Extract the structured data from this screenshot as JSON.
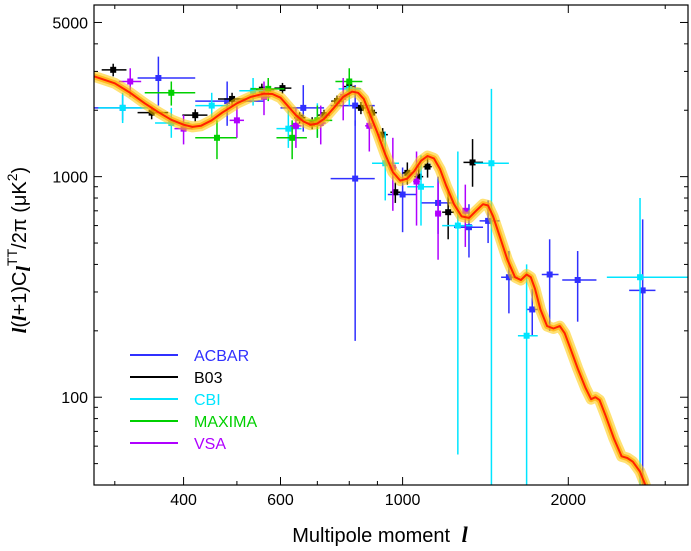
{
  "chart_data": {
    "type": "scatter",
    "xscale": "log",
    "yscale": "log",
    "xlim": [
      275,
      3300
    ],
    "ylim": [
      40,
      6000
    ],
    "xlabel": "Multipole moment",
    "xlabel_symbol": "l",
    "ylabel_parts": [
      "l",
      "(",
      "l",
      "+1)C",
      "l",
      "TT",
      "/2π (μK",
      "2",
      ")"
    ],
    "xticks": [
      400,
      600,
      1000,
      2000
    ],
    "xtick_labels": [
      "400",
      "600",
      "1000",
      "2000"
    ],
    "yticks": [
      100,
      1000,
      5000
    ],
    "ytick_labels": [
      "100",
      "1000",
      "5000"
    ],
    "legend_position": "lower-left",
    "model_curve": {
      "name": "best-fit model",
      "color": "#ff2200",
      "band_color": "#ffc800",
      "points": [
        [
          275,
          2850
        ],
        [
          300,
          2650
        ],
        [
          320,
          2400
        ],
        [
          340,
          2150
        ],
        [
          360,
          1960
        ],
        [
          380,
          1810
        ],
        [
          400,
          1720
        ],
        [
          415,
          1680
        ],
        [
          430,
          1700
        ],
        [
          450,
          1800
        ],
        [
          470,
          1950
        ],
        [
          500,
          2150
        ],
        [
          530,
          2300
        ],
        [
          560,
          2380
        ],
        [
          580,
          2370
        ],
        [
          600,
          2280
        ],
        [
          620,
          2080
        ],
        [
          640,
          1900
        ],
        [
          660,
          1780
        ],
        [
          680,
          1720
        ],
        [
          700,
          1740
        ],
        [
          720,
          1830
        ],
        [
          750,
          2050
        ],
        [
          780,
          2300
        ],
        [
          810,
          2430
        ],
        [
          830,
          2400
        ],
        [
          850,
          2250
        ],
        [
          870,
          1950
        ],
        [
          900,
          1580
        ],
        [
          930,
          1260
        ],
        [
          960,
          1050
        ],
        [
          990,
          960
        ],
        [
          1020,
          980
        ],
        [
          1050,
          1060
        ],
        [
          1080,
          1180
        ],
        [
          1110,
          1240
        ],
        [
          1140,
          1210
        ],
        [
          1170,
          1080
        ],
        [
          1200,
          910
        ],
        [
          1240,
          750
        ],
        [
          1280,
          660
        ],
        [
          1320,
          650
        ],
        [
          1360,
          700
        ],
        [
          1400,
          750
        ],
        [
          1430,
          740
        ],
        [
          1460,
          660
        ],
        [
          1500,
          540
        ],
        [
          1550,
          420
        ],
        [
          1600,
          350
        ],
        [
          1640,
          340
        ],
        [
          1680,
          360
        ],
        [
          1710,
          350
        ],
        [
          1740,
          310
        ],
        [
          1780,
          250
        ],
        [
          1830,
          210
        ],
        [
          1880,
          205
        ],
        [
          1930,
          210
        ],
        [
          1970,
          195
        ],
        [
          2020,
          165
        ],
        [
          2080,
          135
        ],
        [
          2150,
          110
        ],
        [
          2200,
          98
        ],
        [
          2240,
          100
        ],
        [
          2280,
          97
        ],
        [
          2340,
          82
        ],
        [
          2420,
          65
        ],
        [
          2500,
          54
        ],
        [
          2560,
          53
        ],
        [
          2620,
          51
        ],
        [
          2700,
          46
        ],
        [
          2760,
          40
        ]
      ]
    },
    "series": [
      {
        "name": "ACBAR",
        "color": "#3030ff",
        "points": [
          {
            "x": 310,
            "y": 2050,
            "xlo": 275,
            "xhi": 340,
            "ylo": 1800,
            "yhi": 2350
          },
          {
            "x": 360,
            "y": 2800,
            "xlo": 330,
            "xhi": 420,
            "ylo": 2100,
            "yhi": 3500
          },
          {
            "x": 480,
            "y": 2200,
            "xlo": 420,
            "xhi": 560,
            "ylo": 1700,
            "yhi": 2700
          },
          {
            "x": 660,
            "y": 2050,
            "xlo": 600,
            "xhi": 720,
            "ylo": 1600,
            "yhi": 2600
          },
          {
            "x": 820,
            "y": 2100,
            "xlo": 740,
            "xhi": 890,
            "ylo": 1700,
            "yhi": 2600
          },
          {
            "x": 820,
            "y": 980,
            "xlo": 740,
            "xhi": 890,
            "ylo": 180,
            "yhi": 1800
          },
          {
            "x": 1000,
            "y": 830,
            "xlo": 940,
            "xhi": 1060,
            "ylo": 560,
            "yhi": 1100
          },
          {
            "x": 1160,
            "y": 760,
            "xlo": 1080,
            "xhi": 1240,
            "ylo": 550,
            "yhi": 1000
          },
          {
            "x": 1320,
            "y": 590,
            "xlo": 1240,
            "xhi": 1400,
            "ylo": 430,
            "yhi": 750
          },
          {
            "x": 1430,
            "y": 630,
            "xlo": 1380,
            "xhi": 1500,
            "ylo": 500,
            "yhi": 780
          },
          {
            "x": 1560,
            "y": 350,
            "xlo": 1510,
            "xhi": 1620,
            "ylo": 240,
            "yhi": 460
          },
          {
            "x": 1720,
            "y": 250,
            "xlo": 1680,
            "xhi": 1760,
            "ylo": 190,
            "yhi": 310
          },
          {
            "x": 1850,
            "y": 360,
            "xlo": 1790,
            "xhi": 1920,
            "ylo": 200,
            "yhi": 520
          },
          {
            "x": 2080,
            "y": 340,
            "xlo": 1950,
            "xhi": 2250,
            "ylo": 220,
            "yhi": 460
          },
          {
            "x": 2730,
            "y": 305,
            "xlo": 2580,
            "xhi": 2880,
            "ylo": 40,
            "yhi": 640
          }
        ]
      },
      {
        "name": "B03",
        "color": "#000000",
        "points": [
          {
            "x": 298,
            "y": 3050,
            "xlo": 284,
            "xhi": 315,
            "ylo": 2850,
            "yhi": 3250
          },
          {
            "x": 350,
            "y": 1950,
            "xlo": 330,
            "xhi": 375,
            "ylo": 1820,
            "yhi": 2080
          },
          {
            "x": 420,
            "y": 1900,
            "xlo": 398,
            "xhi": 442,
            "ylo": 1780,
            "yhi": 2020
          },
          {
            "x": 490,
            "y": 2250,
            "xlo": 462,
            "xhi": 520,
            "ylo": 2100,
            "yhi": 2400
          },
          {
            "x": 555,
            "y": 2480,
            "xlo": 528,
            "xhi": 585,
            "ylo": 2320,
            "yhi": 2640
          },
          {
            "x": 605,
            "y": 2520,
            "xlo": 585,
            "xhi": 628,
            "ylo": 2380,
            "yhi": 2660
          },
          {
            "x": 650,
            "y": 1850,
            "xlo": 635,
            "xhi": 666,
            "ylo": 1740,
            "yhi": 1960
          },
          {
            "x": 685,
            "y": 1750,
            "xlo": 668,
            "xhi": 702,
            "ylo": 1640,
            "yhi": 1860
          },
          {
            "x": 720,
            "y": 1900,
            "xlo": 702,
            "xhi": 738,
            "ylo": 1790,
            "yhi": 2010
          },
          {
            "x": 760,
            "y": 2200,
            "xlo": 742,
            "xhi": 778,
            "ylo": 2080,
            "yhi": 2330
          },
          {
            "x": 800,
            "y": 2560,
            "xlo": 782,
            "xhi": 818,
            "ylo": 2420,
            "yhi": 2700
          },
          {
            "x": 840,
            "y": 2050,
            "xlo": 822,
            "xhi": 858,
            "ylo": 1920,
            "yhi": 2180
          },
          {
            "x": 880,
            "y": 1950,
            "xlo": 862,
            "xhi": 898,
            "ylo": 1820,
            "yhi": 2080
          },
          {
            "x": 920,
            "y": 1550,
            "xlo": 900,
            "xhi": 940,
            "ylo": 1440,
            "yhi": 1660
          },
          {
            "x": 970,
            "y": 850,
            "xlo": 950,
            "xhi": 990,
            "ylo": 760,
            "yhi": 940
          },
          {
            "x": 1020,
            "y": 1040,
            "xlo": 1000,
            "xhi": 1040,
            "ylo": 920,
            "yhi": 1160
          },
          {
            "x": 1070,
            "y": 1000,
            "xlo": 1050,
            "xhi": 1090,
            "ylo": 880,
            "yhi": 1120
          },
          {
            "x": 1110,
            "y": 1110,
            "xlo": 1090,
            "xhi": 1130,
            "ylo": 990,
            "yhi": 1240
          },
          {
            "x": 1210,
            "y": 690,
            "xlo": 1180,
            "xhi": 1240,
            "ylo": 520,
            "yhi": 880
          },
          {
            "x": 1340,
            "y": 1160,
            "xlo": 1290,
            "xhi": 1400,
            "ylo": 900,
            "yhi": 1480
          }
        ]
      },
      {
        "name": "CBI",
        "color": "#00e5ff",
        "points": [
          {
            "x": 310,
            "y": 2050,
            "xlo": 280,
            "xhi": 345,
            "ylo": 1750,
            "yhi": 2400
          },
          {
            "x": 380,
            "y": 1750,
            "xlo": 355,
            "xhi": 410,
            "ylo": 1500,
            "yhi": 2050
          },
          {
            "x": 450,
            "y": 2100,
            "xlo": 420,
            "xhi": 485,
            "ylo": 1850,
            "yhi": 2400
          },
          {
            "x": 535,
            "y": 2450,
            "xlo": 505,
            "xhi": 570,
            "ylo": 2100,
            "yhi": 2800
          },
          {
            "x": 620,
            "y": 1650,
            "xlo": 590,
            "xhi": 655,
            "ylo": 1350,
            "yhi": 2000
          },
          {
            "x": 700,
            "y": 1800,
            "xlo": 665,
            "xhi": 735,
            "ylo": 1500,
            "yhi": 2150
          },
          {
            "x": 800,
            "y": 2500,
            "xlo": 765,
            "xhi": 840,
            "ylo": 2100,
            "yhi": 2900
          },
          {
            "x": 930,
            "y": 1150,
            "xlo": 880,
            "xhi": 985,
            "ylo": 780,
            "yhi": 1600
          },
          {
            "x": 1080,
            "y": 900,
            "xlo": 1020,
            "xhi": 1140,
            "ylo": 600,
            "yhi": 1250
          },
          {
            "x": 1260,
            "y": 600,
            "xlo": 1180,
            "xhi": 1340,
            "ylo": 55,
            "yhi": 1300
          },
          {
            "x": 1450,
            "y": 1150,
            "xlo": 1350,
            "xhi": 1560,
            "ylo": 40,
            "yhi": 2500
          },
          {
            "x": 1680,
            "y": 190,
            "xlo": 1620,
            "xhi": 1760,
            "ylo": 40,
            "yhi": 400
          },
          {
            "x": 2700,
            "y": 350,
            "xlo": 2350,
            "xhi": 3300,
            "ylo": 40,
            "yhi": 800
          }
        ]
      },
      {
        "name": "MAXIMA",
        "color": "#00d000",
        "points": [
          {
            "x": 380,
            "y": 2400,
            "xlo": 340,
            "xhi": 420,
            "ylo": 2100,
            "yhi": 2700
          },
          {
            "x": 460,
            "y": 1500,
            "xlo": 420,
            "xhi": 500,
            "ylo": 1200,
            "yhi": 1800
          },
          {
            "x": 570,
            "y": 2500,
            "xlo": 530,
            "xhi": 610,
            "ylo": 2200,
            "yhi": 2800
          },
          {
            "x": 630,
            "y": 1500,
            "xlo": 590,
            "xhi": 670,
            "ylo": 1200,
            "yhi": 1800
          },
          {
            "x": 700,
            "y": 1800,
            "xlo": 660,
            "xhi": 745,
            "ylo": 1500,
            "yhi": 2100
          },
          {
            "x": 800,
            "y": 2700,
            "xlo": 755,
            "xhi": 845,
            "ylo": 2300,
            "yhi": 3100
          }
        ]
      },
      {
        "name": "VSA",
        "color": "#b000ff",
        "points": [
          {
            "x": 320,
            "y": 2700,
            "xlo": 305,
            "xhi": 335,
            "ylo": 2300,
            "yhi": 3100
          },
          {
            "x": 400,
            "y": 1650,
            "xlo": 385,
            "xhi": 415,
            "ylo": 1400,
            "yhi": 1900
          },
          {
            "x": 500,
            "y": 1800,
            "xlo": 485,
            "xhi": 515,
            "ylo": 1500,
            "yhi": 2100
          },
          {
            "x": 560,
            "y": 2300,
            "xlo": 545,
            "xhi": 575,
            "ylo": 1900,
            "yhi": 2700
          },
          {
            "x": 640,
            "y": 1700,
            "xlo": 625,
            "xhi": 655,
            "ylo": 1350,
            "yhi": 2050
          },
          {
            "x": 710,
            "y": 1750,
            "xlo": 695,
            "xhi": 725,
            "ylo": 1400,
            "yhi": 2100
          },
          {
            "x": 780,
            "y": 2300,
            "xlo": 765,
            "xhi": 795,
            "ylo": 1800,
            "yhi": 2800
          },
          {
            "x": 870,
            "y": 1700,
            "xlo": 855,
            "xhi": 885,
            "ylo": 1300,
            "yhi": 2100
          },
          {
            "x": 960,
            "y": 1100,
            "xlo": 945,
            "xhi": 975,
            "ylo": 700,
            "yhi": 1500
          },
          {
            "x": 1060,
            "y": 950,
            "xlo": 1045,
            "xhi": 1075,
            "ylo": 600,
            "yhi": 1300
          },
          {
            "x": 1160,
            "y": 680,
            "xlo": 1145,
            "xhi": 1175,
            "ylo": 420,
            "yhi": 940
          },
          {
            "x": 1300,
            "y": 700,
            "xlo": 1285,
            "xhi": 1315,
            "ylo": 480,
            "yhi": 920
          }
        ]
      }
    ]
  }
}
